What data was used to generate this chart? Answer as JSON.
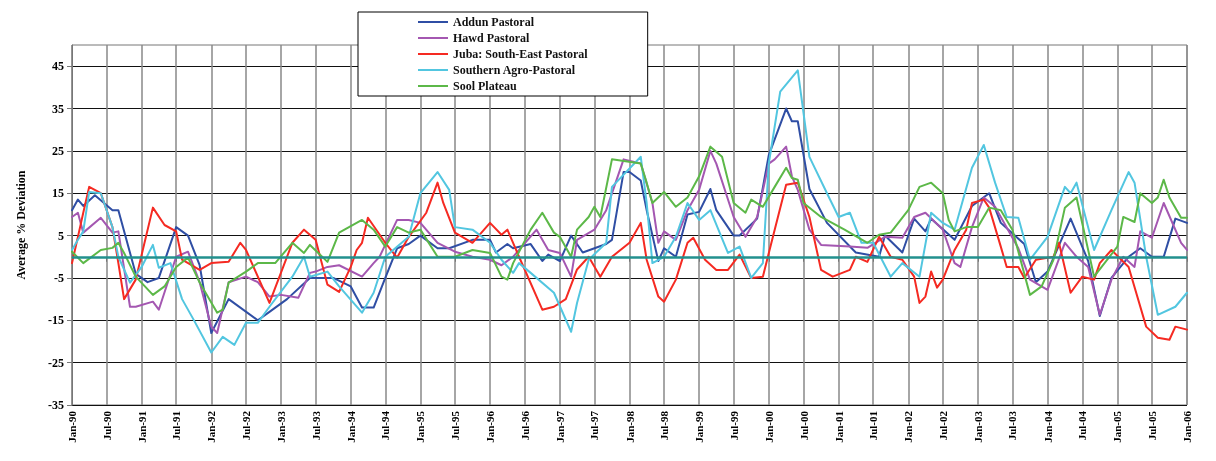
{
  "chart_data": {
    "type": "line",
    "ylabel": "Average % Deviation",
    "grid": true,
    "legend": "top",
    "marker": "none",
    "line_style": "solid",
    "xlim": [
      "1990-01",
      "2006-01"
    ],
    "ylim": [
      -35,
      50
    ],
    "yticks": [
      -35,
      -25,
      -15,
      -5,
      5,
      15,
      25,
      35,
      45
    ],
    "xticks": [
      {
        "value": "1990-01",
        "label": "Jan-90"
      },
      {
        "value": "1990-07",
        "label": "Jul-90"
      },
      {
        "value": "1991-01",
        "label": "Jan-91"
      },
      {
        "value": "1991-07",
        "label": "Jul-91"
      },
      {
        "value": "1992-01",
        "label": "Jan-92"
      },
      {
        "value": "1992-07",
        "label": "Jul-92"
      },
      {
        "value": "1993-01",
        "label": "Jan-93"
      },
      {
        "value": "1993-07",
        "label": "Jul-93"
      },
      {
        "value": "1994-01",
        "label": "Jan-94"
      },
      {
        "value": "1994-07",
        "label": "Jul-94"
      },
      {
        "value": "1995-01",
        "label": "Jan-95"
      },
      {
        "value": "1995-07",
        "label": "Jul-95"
      },
      {
        "value": "1996-01",
        "label": "Jan-96"
      },
      {
        "value": "1996-07",
        "label": "Jul-96"
      },
      {
        "value": "1997-01",
        "label": "Jan-97"
      },
      {
        "value": "1997-07",
        "label": "Jul-97"
      },
      {
        "value": "1998-01",
        "label": "Jan-98"
      },
      {
        "value": "1998-07",
        "label": "Jul-98"
      },
      {
        "value": "1999-01",
        "label": "Jan-99"
      },
      {
        "value": "1999-07",
        "label": "Jul-99"
      },
      {
        "value": "2000-01",
        "label": "Jan-00"
      },
      {
        "value": "2000-07",
        "label": "Jul-00"
      },
      {
        "value": "2001-01",
        "label": "Jan-01"
      },
      {
        "value": "2001-07",
        "label": "Jul-01"
      },
      {
        "value": "2002-01",
        "label": "Jan-02"
      },
      {
        "value": "2002-07",
        "label": "Jul-02"
      },
      {
        "value": "2003-01",
        "label": "Jan-03"
      },
      {
        "value": "2003-07",
        "label": "Jul-03"
      },
      {
        "value": "2004-01",
        "label": "Jan-04"
      },
      {
        "value": "2004-07",
        "label": "Jul-04"
      },
      {
        "value": "2005-01",
        "label": "Jan-05"
      },
      {
        "value": "2005-07",
        "label": "Jul-05"
      },
      {
        "value": "2006-01",
        "label": "Jan-06"
      }
    ],
    "ref_lines": [
      {
        "axis": "y",
        "value": 0,
        "color": "#22908e"
      }
    ],
    "series": [
      {
        "name": "Addun Pastoral",
        "color": "#2f4ea4",
        "x": [
          "1990-01",
          "1990-02",
          "1990-03",
          "1990-05",
          "1990-08",
          "1990-09",
          "1990-12",
          "1991-02",
          "1991-04",
          "1991-07",
          "1991-09",
          "1991-11",
          "1992-01",
          "1992-04",
          "1992-09",
          "1992-11",
          "1993-02",
          "1993-06",
          "1993-10",
          "1994-01",
          "1994-03",
          "1994-05",
          "1994-07",
          "1994-09",
          "1994-11",
          "1995-01",
          "1995-04",
          "1995-06",
          "1995-10",
          "1996-01",
          "1996-02",
          "1996-04",
          "1996-05",
          "1996-08",
          "1996-10",
          "1996-11",
          "1997-01",
          "1997-03",
          "1997-05",
          "1997-09",
          "1997-10",
          "1997-12",
          "1998-01",
          "1998-03",
          "1998-04",
          "1998-06",
          "1998-07",
          "1998-09",
          "1998-11",
          "1999-01",
          "1999-03",
          "1999-04",
          "1999-07",
          "1999-08",
          "1999-11",
          "2000-01",
          "2000-04",
          "2000-05",
          "2000-06",
          "2000-08",
          "2000-11",
          "2001-04",
          "2001-08",
          "2001-09",
          "2001-12",
          "2002-02",
          "2002-04",
          "2002-05",
          "2002-09",
          "2002-12",
          "2003-03",
          "2003-05",
          "2003-09",
          "2003-11",
          "2004-01",
          "2004-05",
          "2004-08",
          "2004-10",
          "2004-12",
          "2005-03",
          "2005-05",
          "2005-07",
          "2005-09",
          "2005-11",
          "2006-01"
        ],
        "values": [
          11,
          13.5,
          12,
          14.5,
          11,
          11,
          -4,
          -6,
          -5,
          7,
          5,
          -2,
          -18,
          -10,
          -15,
          -13,
          -10,
          -5,
          -5,
          -7,
          -12,
          -12,
          -5,
          2,
          3,
          5,
          2,
          2,
          4,
          4,
          1,
          3,
          2,
          3,
          -1,
          0.5,
          -1,
          5,
          1,
          3,
          4,
          20,
          20,
          18,
          11,
          -1,
          2,
          0,
          10,
          10.6,
          16,
          11,
          5,
          5,
          9,
          24,
          35,
          32,
          32,
          16,
          8,
          1,
          0,
          5,
          1,
          9,
          6,
          9,
          4,
          12,
          15,
          8,
          3,
          -6,
          -3.5,
          9,
          -1,
          -14,
          -5,
          0,
          2,
          0,
          0,
          9,
          8
        ]
      },
      {
        "name": "Hawd Pastoral",
        "color": "#a457b1",
        "x": [
          "1990-01",
          "1990-02",
          "1990-03",
          "1990-06",
          "1990-08",
          "1990-09",
          "1990-11",
          "1990-12",
          "1991-03",
          "1991-04",
          "1991-07",
          "1991-09",
          "1991-11",
          "1992-01",
          "1992-02",
          "1992-04",
          "1992-07",
          "1992-09",
          "1992-11",
          "1993-01",
          "1993-04",
          "1993-06",
          "1993-07",
          "1993-09",
          "1993-11",
          "1994-03",
          "1994-05",
          "1994-06",
          "1994-09",
          "1994-11",
          "1995-01",
          "1995-04",
          "1995-07",
          "1995-10",
          "1996-01",
          "1996-03",
          "1996-05",
          "1996-09",
          "1996-11",
          "1997-01",
          "1997-03",
          "1997-04",
          "1997-07",
          "1997-09",
          "1997-12",
          "1998-03",
          "1998-05",
          "1998-06",
          "1998-07",
          "1998-09",
          "1998-11",
          "1999-01",
          "1999-03",
          "1999-04",
          "1999-07",
          "1999-09",
          "1999-11",
          "2000-01",
          "2000-02",
          "2000-04",
          "2000-05",
          "2000-06",
          "2000-08",
          "2000-10",
          "2001-03",
          "2001-06",
          "2001-09",
          "2001-12",
          "2002-02",
          "2002-04",
          "2002-07",
          "2002-09",
          "2002-10",
          "2002-12",
          "2003-02",
          "2003-04",
          "2003-08",
          "2003-10",
          "2004-01",
          "2004-04",
          "2004-06",
          "2004-08",
          "2004-10",
          "2004-12",
          "2005-02",
          "2005-04",
          "2005-05",
          "2005-07",
          "2005-09",
          "2005-12",
          "2006-01"
        ],
        "values": [
          9.4,
          10.4,
          5.7,
          9.2,
          5.7,
          6,
          -11.8,
          -11.8,
          -10.6,
          -12.5,
          0,
          1.2,
          -6,
          -16.5,
          -18,
          -6,
          -4.7,
          -6,
          -9.4,
          -9,
          -9.7,
          -3.8,
          -3.5,
          -2.4,
          -2,
          -4.7,
          -1.5,
          0,
          8.7,
          8.7,
          8,
          3.3,
          1.2,
          0,
          -0.7,
          -2,
          0,
          6.4,
          1.6,
          0.9,
          -4.7,
          4,
          6.4,
          11,
          23,
          22,
          12.7,
          3.3,
          6,
          4,
          11,
          15.8,
          25,
          22,
          9.4,
          4.7,
          9.4,
          22,
          23,
          26,
          19,
          15.8,
          6.4,
          2.8,
          2.4,
          2.1,
          4.7,
          4.5,
          9.4,
          10.4,
          6.4,
          -1.5,
          -2.4,
          7,
          14,
          11.8,
          2,
          -5.4,
          -7.8,
          3.3,
          0,
          -2.4,
          -13.7,
          -5.4,
          0,
          -2.4,
          6,
          4.5,
          12.7,
          3.3,
          1.6
        ]
      },
      {
        "name": "Juba: South-East Pastoral",
        "color": "#f52a22",
        "x": [
          "1990-01",
          "1990-02",
          "1990-03",
          "1990-04",
          "1990-06",
          "1990-08",
          "1990-09",
          "1990-10",
          "1990-12",
          "1991-03",
          "1991-05",
          "1991-07",
          "1991-08",
          "1991-11",
          "1992-01",
          "1992-04",
          "1992-06",
          "1992-07",
          "1992-11",
          "1993-03",
          "1993-05",
          "1993-07",
          "1993-09",
          "1993-11",
          "1994-01",
          "1994-02",
          "1994-03",
          "1994-04",
          "1994-07",
          "1994-09",
          "1994-11",
          "1995-02",
          "1995-04",
          "1995-05",
          "1995-07",
          "1995-10",
          "1996-01",
          "1996-03",
          "1996-04",
          "1996-06",
          "1996-10",
          "1996-12",
          "1997-02",
          "1997-04",
          "1997-06",
          "1997-08",
          "1997-10",
          "1998-01",
          "1998-03",
          "1998-04",
          "1998-06",
          "1998-07",
          "1998-09",
          "1998-11",
          "1998-12",
          "1999-02",
          "1999-04",
          "1999-06",
          "1999-08",
          "1999-10",
          "1999-12",
          "2000-02",
          "2000-04",
          "2000-06",
          "2000-08",
          "2000-10",
          "2000-12",
          "2001-03",
          "2001-04",
          "2001-06",
          "2001-08",
          "2001-10",
          "2001-12",
          "2002-02",
          "2002-03",
          "2002-04",
          "2002-05",
          "2002-06",
          "2002-07",
          "2002-09",
          "2002-11",
          "2002-12",
          "2003-02",
          "2003-03",
          "2003-05",
          "2003-06",
          "2003-08",
          "2003-09",
          "2003-11",
          "2004-02",
          "2004-03",
          "2004-05",
          "2004-07",
          "2004-09",
          "2004-10",
          "2004-12",
          "2005-03",
          "2005-06",
          "2005-08",
          "2005-10",
          "2005-11",
          "2006-01"
        ],
        "values": [
          -1.5,
          4.7,
          10.4,
          16.5,
          15,
          7,
          -1.5,
          -10,
          -5.4,
          11.6,
          7.5,
          6,
          -0.7,
          -3.1,
          -1.5,
          -1.2,
          3.3,
          1.6,
          -10.9,
          3.3,
          6.4,
          4,
          -6.6,
          -8.3,
          -2.4,
          1.6,
          3.3,
          9.2,
          3.3,
          -0.2,
          4.7,
          10.4,
          17.5,
          12.7,
          5.7,
          3.3,
          8,
          5.2,
          6.4,
          0,
          -12.5,
          -11.8,
          -10,
          -3,
          0,
          -4.7,
          0,
          3.3,
          8,
          -0.7,
          -9.4,
          -10.6,
          -5.4,
          3.3,
          4.5,
          -0.7,
          -3.1,
          -3.1,
          0.5,
          -5,
          -4.7,
          6.4,
          17,
          17.5,
          9.4,
          -3.1,
          -4.7,
          -3.1,
          0,
          -1.2,
          4.7,
          0,
          -0.7,
          -4.7,
          -10.9,
          -9.4,
          -3.5,
          -7.3,
          -5.4,
          1.6,
          6.4,
          12.7,
          13.5,
          11.6,
          2.4,
          -2.4,
          -2.4,
          -5,
          -0.7,
          0,
          3.3,
          -8.5,
          -4.7,
          -5.4,
          -1.5,
          1.6,
          -2.4,
          -16.5,
          -19.1,
          -19.6,
          -16.5,
          -17.2
        ]
      },
      {
        "name": "Southern Agro-Pastoral",
        "color": "#52c6e0",
        "x": [
          "1990-01",
          "1990-02",
          "1990-03",
          "1990-04",
          "1990-06",
          "1990-08",
          "1990-09",
          "1990-11",
          "1991-01",
          "1991-03",
          "1991-04",
          "1991-06",
          "1991-08",
          "1991-10",
          "1992-01",
          "1992-03",
          "1992-05",
          "1992-07",
          "1992-09",
          "1992-11",
          "1993-03",
          "1993-05",
          "1993-06",
          "1993-09",
          "1993-11",
          "1994-03",
          "1994-05",
          "1994-07",
          "1994-11",
          "1995-01",
          "1995-04",
          "1995-06",
          "1995-07",
          "1995-10",
          "1996-01",
          "1996-03",
          "1996-05",
          "1996-06",
          "1996-08",
          "1996-12",
          "1997-03",
          "1997-04",
          "1997-06",
          "1997-09",
          "1997-10",
          "1998-03",
          "1998-04",
          "1998-05",
          "1998-07",
          "1998-09",
          "1998-11",
          "1999-01",
          "1999-03",
          "1999-06",
          "1999-08",
          "1999-10",
          "1999-12",
          "2000-01",
          "2000-03",
          "2000-06",
          "2000-08",
          "2000-11",
          "2001-01",
          "2001-03",
          "2001-05",
          "2001-07",
          "2001-10",
          "2001-12",
          "2002-03",
          "2002-05",
          "2002-07",
          "2002-09",
          "2002-12",
          "2003-02",
          "2003-04",
          "2003-06",
          "2003-08",
          "2003-10",
          "2004-01",
          "2004-04",
          "2004-05",
          "2004-06",
          "2004-09",
          "2004-12",
          "2005-03",
          "2005-04",
          "2005-06",
          "2005-08",
          "2005-11",
          "2006-01"
        ],
        "values": [
          1.6,
          4,
          6,
          15.3,
          15,
          7,
          0,
          -6.1,
          -2.4,
          2.8,
          -2.6,
          -1.5,
          -10,
          -14.9,
          -22.6,
          -18.9,
          -20.8,
          -15.6,
          -15.6,
          -11.8,
          -4.7,
          0,
          -4.7,
          -3.5,
          -7,
          -13.2,
          -8.5,
          0,
          4.7,
          15,
          20,
          15.8,
          7,
          6.4,
          3.3,
          -0.7,
          -3.8,
          -1.5,
          -3.8,
          -8.5,
          -17.7,
          -10.9,
          -0.7,
          3.3,
          16.5,
          23.6,
          12.7,
          -1.5,
          0,
          4.7,
          12.7,
          8.7,
          11,
          0.9,
          2.4,
          -5,
          -1.5,
          22,
          39,
          44,
          23.6,
          15,
          9.4,
          10.4,
          3.3,
          3.3,
          -4.7,
          -1.5,
          -4.7,
          10.4,
          8,
          6.4,
          21,
          26.4,
          17.5,
          9.4,
          9.2,
          -0.7,
          4.7,
          16.5,
          15,
          17.5,
          1.6,
          11,
          20,
          17.5,
          0,
          -13.7,
          -11.8,
          -8.5
        ]
      },
      {
        "name": "Sool Plateau",
        "color": "#5cb848",
        "x": [
          "1990-01",
          "1990-03",
          "1990-06",
          "1990-08",
          "1990-09",
          "1990-10",
          "1990-12",
          "1991-03",
          "1991-05",
          "1991-07",
          "1991-09",
          "1991-11",
          "1992-02",
          "1992-03",
          "1992-04",
          "1992-07",
          "1992-09",
          "1992-12",
          "1993-03",
          "1993-05",
          "1993-06",
          "1993-09",
          "1993-11",
          "1994-03",
          "1994-05",
          "1994-07",
          "1994-09",
          "1994-11",
          "1995-01",
          "1995-04",
          "1995-07",
          "1995-10",
          "1996-01",
          "1996-03",
          "1996-04",
          "1996-05",
          "1996-08",
          "1996-10",
          "1996-12",
          "1997-01",
          "1997-03",
          "1997-04",
          "1997-06",
          "1997-07",
          "1997-08",
          "1997-10",
          "1998-03",
          "1998-04",
          "1998-05",
          "1998-07",
          "1998-09",
          "1998-11",
          "1999-01",
          "1999-03",
          "1999-05",
          "1999-07",
          "1999-09",
          "1999-10",
          "1999-12",
          "2000-02",
          "2000-04",
          "2000-05",
          "2000-06",
          "2000-07",
          "2000-10",
          "2001-02",
          "2001-06",
          "2001-08",
          "2001-10",
          "2002-01",
          "2002-03",
          "2002-05",
          "2002-07",
          "2002-08",
          "2002-09",
          "2002-11",
          "2003-01",
          "2003-03",
          "2003-05",
          "2003-07",
          "2003-10",
          "2003-12",
          "2004-02",
          "2004-04",
          "2004-06",
          "2004-09",
          "2005-01",
          "2005-02",
          "2005-04",
          "2005-05",
          "2005-07",
          "2005-08",
          "2005-09",
          "2005-10",
          "2005-12",
          "2006-01"
        ],
        "values": [
          1.2,
          -1.5,
          1.6,
          2.1,
          3.3,
          0.9,
          -4.7,
          -9,
          -7,
          -2.4,
          -0.2,
          -6.1,
          -13.2,
          -12.5,
          -6.1,
          -3.5,
          -1.5,
          -1.5,
          3.3,
          0.9,
          2.8,
          -1.2,
          5.7,
          8.7,
          6.4,
          2.4,
          7,
          5.7,
          6.4,
          0,
          0,
          1.6,
          0.9,
          -4.7,
          -5.4,
          -1.5,
          6.4,
          10.4,
          5.7,
          4.7,
          0,
          6.4,
          9.4,
          11.8,
          9.4,
          23,
          22,
          17.5,
          12.7,
          15.3,
          11.8,
          14,
          19,
          26,
          23.6,
          12.7,
          10.4,
          13.5,
          11.8,
          16.5,
          21,
          18.6,
          18.2,
          12.7,
          9.4,
          6.4,
          3.3,
          5.2,
          5.7,
          11,
          16.5,
          17.5,
          15,
          8.7,
          6,
          7,
          7,
          11.6,
          11,
          6.4,
          -9,
          -7,
          -0.7,
          11.6,
          14,
          -4.7,
          2.4,
          9.4,
          8.2,
          15,
          12.7,
          14,
          18.2,
          14,
          9.2,
          9.2
        ]
      }
    ]
  }
}
